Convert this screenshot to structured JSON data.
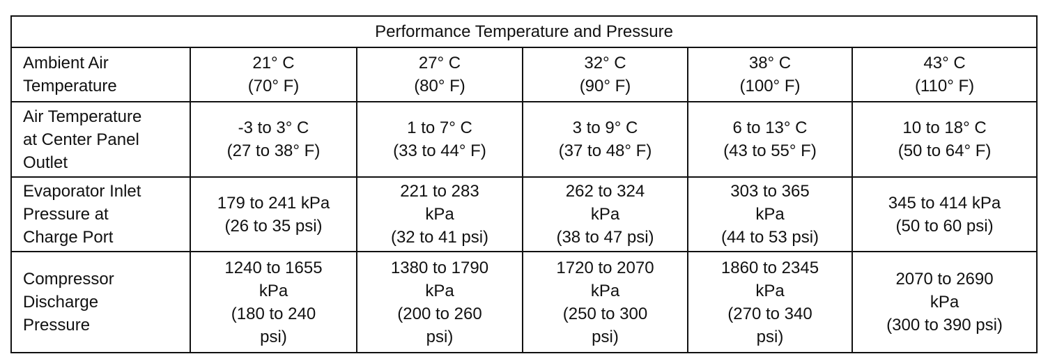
{
  "table": {
    "title": "Performance Temperature and Pressure",
    "rows": [
      {
        "label": [
          "Ambient Air",
          "Temperature"
        ],
        "cells": [
          [
            "21° C",
            "(70° F)"
          ],
          [
            "27° C",
            "(80° F)"
          ],
          [
            "32° C",
            "(90° F)"
          ],
          [
            "38° C",
            "(100° F)"
          ],
          [
            "43° C",
            "(110° F)"
          ]
        ]
      },
      {
        "label": [
          "Air Temperature",
          "at Center Panel",
          "Outlet"
        ],
        "cells": [
          [
            "-3 to 3° C",
            "(27 to 38° F)"
          ],
          [
            "1 to 7° C",
            "(33 to 44° F)"
          ],
          [
            "3 to 9° C",
            "(37 to 48° F)"
          ],
          [
            "6 to 13° C",
            "(43 to 55° F)"
          ],
          [
            "10 to 18° C",
            "(50 to 64° F)"
          ]
        ]
      },
      {
        "label": [
          "Evaporator Inlet",
          "Pressure at",
          "Charge Port"
        ],
        "cells": [
          [
            "179 to 241 kPa",
            "(26 to 35 psi)"
          ],
          [
            "221 to 283",
            "kPa",
            "(32 to 41 psi)"
          ],
          [
            "262 to 324",
            "kPa",
            "(38 to 47 psi)"
          ],
          [
            "303 to 365",
            "kPa",
            "(44 to 53 psi)"
          ],
          [
            "345 to 414 kPa",
            "(50 to 60 psi)"
          ]
        ]
      },
      {
        "label": [
          "Compressor",
          "Discharge",
          "Pressure"
        ],
        "cells": [
          [
            "1240 to 1655",
            "kPa",
            "(180 to 240",
            "psi)"
          ],
          [
            "1380 to 1790",
            "kPa",
            "(200 to 260",
            "psi)"
          ],
          [
            "1720 to 2070",
            "kPa",
            "(250 to 300",
            "psi)"
          ],
          [
            "1860 to 2345",
            "kPa",
            "(270 to 340",
            "psi)"
          ],
          [
            "2070 to 2690",
            "kPa",
            "(300 to 390 psi)"
          ]
        ]
      }
    ]
  }
}
